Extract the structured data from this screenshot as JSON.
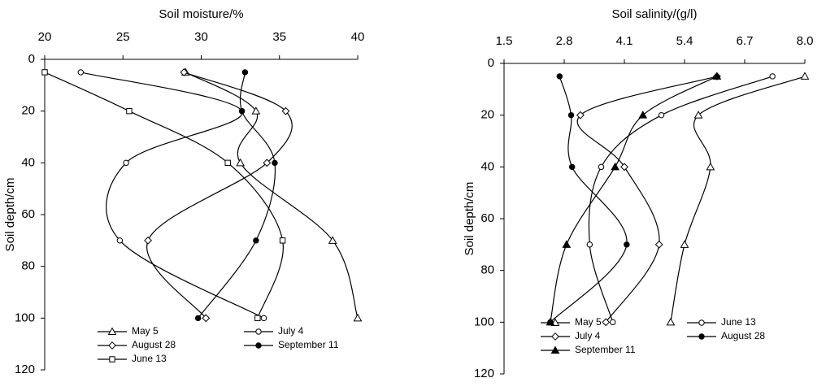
{
  "chart_data": [
    {
      "type": "line",
      "x_label": "Soil moisture/%",
      "y_label": "Soil depth/cm",
      "depths": [
        5,
        20,
        40,
        70,
        100
      ],
      "xlim": [
        20,
        40
      ],
      "xticks": [
        20,
        25,
        30,
        35,
        40
      ],
      "ylim": [
        0,
        120
      ],
      "yticks": [
        0,
        20,
        40,
        60,
        80,
        100,
        120
      ],
      "y_reversed": true,
      "x_axis_position": "top",
      "legend": "bottom",
      "series": [
        {
          "name": "May 5",
          "marker": "triangle",
          "filled": false,
          "color": "#000000",
          "values": [
            29.0,
            33.5,
            32.5,
            38.4,
            40.0
          ]
        },
        {
          "name": "July 4",
          "marker": "circle",
          "filled": false,
          "color": "#000000",
          "values": [
            22.3,
            32.6,
            25.2,
            24.8,
            34.0
          ]
        },
        {
          "name": "August 28",
          "marker": "diamond",
          "filled": false,
          "color": "#000000",
          "values": [
            28.9,
            35.4,
            34.2,
            26.6,
            30.3
          ]
        },
        {
          "name": "September 11",
          "marker": "circle",
          "filled": true,
          "color": "#000000",
          "values": [
            32.8,
            32.6,
            34.7,
            33.5,
            29.8
          ]
        },
        {
          "name": "June 13",
          "marker": "square",
          "filled": false,
          "color": "#000000",
          "values": [
            20.0,
            25.4,
            31.7,
            35.2,
            33.6
          ]
        }
      ]
    },
    {
      "type": "line",
      "x_label": "Soil salinity/(g/l)",
      "y_label": "Soil depth/cm",
      "depths": [
        5,
        20,
        40,
        70,
        100
      ],
      "xlim": [
        1.5,
        8.0
      ],
      "xticks": [
        1.5,
        2.8,
        4.1,
        5.4,
        6.7,
        {
          "value": 8,
          "label": "8.0"
        }
      ],
      "ylim": [
        0,
        120
      ],
      "yticks": [
        0,
        20,
        40,
        60,
        80,
        100,
        120
      ],
      "y_reversed": true,
      "x_axis_position": "top",
      "legend": "bottom",
      "series": [
        {
          "name": "May 5",
          "marker": "triangle",
          "filled": false,
          "color": "#000000",
          "values": [
            8.0,
            5.7,
            5.96,
            5.4,
            5.1
          ]
        },
        {
          "name": "June 13",
          "marker": "circle",
          "filled": false,
          "color": "#000000",
          "values": [
            7.3,
            4.9,
            3.6,
            3.35,
            3.85
          ]
        },
        {
          "name": "July 4",
          "marker": "diamond",
          "filled": false,
          "color": "#000000",
          "values": [
            6.1,
            3.15,
            4.1,
            4.85,
            3.7
          ]
        },
        {
          "name": "August 28",
          "marker": "circle",
          "filled": true,
          "color": "#000000",
          "values": [
            2.7,
            2.95,
            2.97,
            4.15,
            2.5
          ]
        },
        {
          "name": "September 11",
          "marker": "triangle",
          "filled": true,
          "color": "#000000",
          "values": [
            6.1,
            4.5,
            3.9,
            2.85,
            2.5
          ]
        }
      ]
    }
  ]
}
